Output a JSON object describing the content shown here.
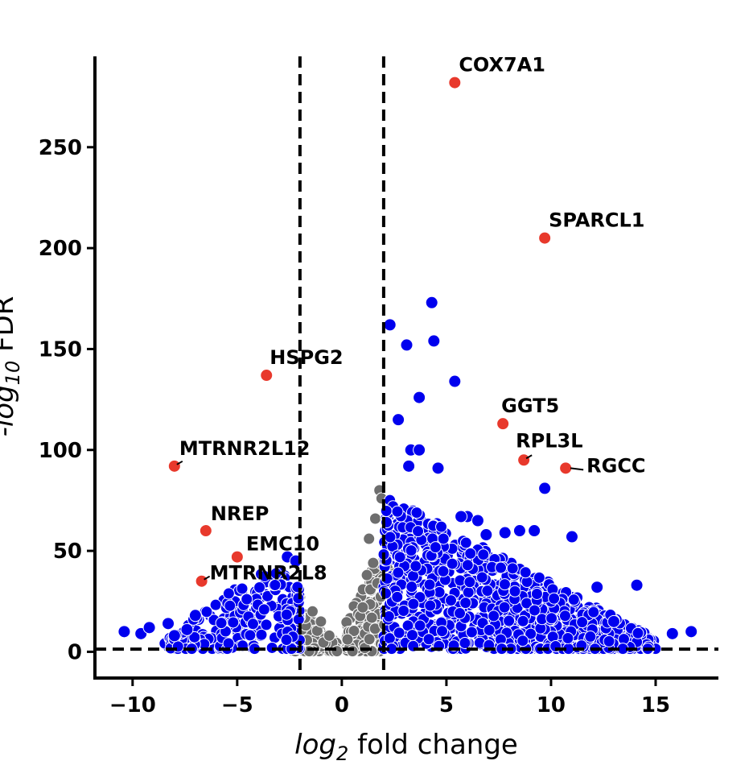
{
  "chart_data": {
    "type": "scatter",
    "title": "",
    "xlabel_prefix": "log",
    "xlabel_subscript": "2",
    "xlabel_suffix": " fold change",
    "ylabel_prefix": "-log",
    "ylabel_subscript": "10",
    "ylabel_suffix": " FDR",
    "xlim": [
      -11.8,
      18
    ],
    "ylim": [
      -13,
      295
    ],
    "xticks": [
      -10,
      -5,
      0,
      5,
      10,
      15
    ],
    "xtick_labels": [
      "−10",
      "−5",
      "0",
      "5",
      "10",
      "15"
    ],
    "yticks": [
      0,
      50,
      100,
      150,
      200,
      250
    ],
    "ytick_labels": [
      "0",
      "50",
      "100",
      "150",
      "200",
      "250"
    ],
    "thresholds": {
      "log2fc": [
        -2,
        2
      ],
      "fdr_line": 1.3
    },
    "colors": {
      "up_down": "#0000ee",
      "not_significant": "#6e6e6e",
      "highlight": "#e8392c"
    },
    "highlighted_genes": [
      {
        "name": "COX7A1",
        "x": 5.4,
        "y": 282
      },
      {
        "name": "SPARCL1",
        "x": 9.7,
        "y": 205
      },
      {
        "name": "HSPG2",
        "x": -3.6,
        "y": 137
      },
      {
        "name": "GGT5",
        "x": 7.7,
        "y": 113
      },
      {
        "name": "RPL3L",
        "x": 8.7,
        "y": 95
      },
      {
        "name": "RGCC",
        "x": 10.7,
        "y": 91
      },
      {
        "name": "MTRNR2L12",
        "x": -8.0,
        "y": 92
      },
      {
        "name": "NREP",
        "x": -6.5,
        "y": 60
      },
      {
        "name": "EMC10",
        "x": -5.0,
        "y": 47
      },
      {
        "name": "MTRNR2L8",
        "x": -6.7,
        "y": 35
      }
    ],
    "notable_significant_points": [
      [
        4.3,
        173
      ],
      [
        2.3,
        162
      ],
      [
        4.4,
        154
      ],
      [
        3.1,
        152
      ],
      [
        5.4,
        134
      ],
      [
        3.7,
        126
      ],
      [
        2.7,
        115
      ],
      [
        3.3,
        100
      ],
      [
        3.7,
        100
      ],
      [
        3.2,
        92
      ],
      [
        4.6,
        91
      ],
      [
        9.7,
        81
      ],
      [
        -10.4,
        10
      ],
      [
        -9.6,
        9
      ],
      [
        -9.2,
        12
      ],
      [
        -8.3,
        14
      ],
      [
        -8.0,
        8
      ],
      [
        -7.4,
        11
      ],
      [
        -7.0,
        18
      ],
      [
        15.8,
        9
      ],
      [
        16.7,
        10
      ],
      [
        14.1,
        33
      ],
      [
        11.0,
        57
      ],
      [
        12.2,
        32
      ],
      [
        13.0,
        15
      ],
      [
        9.2,
        60
      ],
      [
        8.5,
        60
      ],
      [
        7.8,
        59
      ],
      [
        6.9,
        58
      ],
      [
        6.0,
        67
      ],
      [
        6.5,
        65
      ],
      [
        5.7,
        67
      ],
      [
        -2.6,
        47
      ],
      [
        -2.2,
        45
      ]
    ]
  }
}
